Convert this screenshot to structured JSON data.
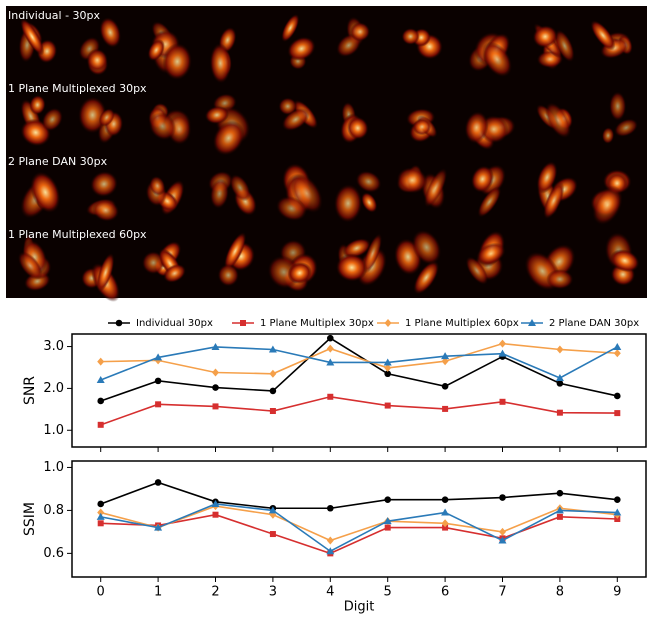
{
  "image_grid": {
    "row_labels": [
      "Individual - 30px",
      "1 Plane Multiplexed 30px",
      "2 Plane DAN 30px",
      "1 Plane Multiplexed 60px"
    ]
  },
  "chart_data": [
    {
      "type": "line",
      "ylabel": "SNR",
      "x": [
        0,
        1,
        2,
        3,
        4,
        5,
        6,
        7,
        8,
        9
      ],
      "xlim": [
        -0.5,
        9.5
      ],
      "xticks": [
        0,
        1,
        2,
        3,
        4,
        5,
        6,
        7,
        8,
        9
      ],
      "ylim": [
        0.6,
        3.3
      ],
      "yticks": [
        {
          "value": 1,
          "label": "1.0"
        },
        {
          "value": 2,
          "label": "2.0"
        },
        {
          "value": 3,
          "label": "3.0"
        }
      ],
      "series": [
        {
          "name": "Individual 30px",
          "color": "#000000",
          "marker": "circle",
          "values": [
            1.7,
            2.18,
            2.02,
            1.94,
            3.2,
            2.35,
            2.05,
            2.76,
            2.12,
            1.82
          ]
        },
        {
          "name": "1 Plane Multiplex 30px",
          "color": "#d62f2f",
          "marker": "square",
          "values": [
            1.13,
            1.62,
            1.57,
            1.46,
            1.8,
            1.59,
            1.51,
            1.68,
            1.42,
            1.41
          ]
        },
        {
          "name": "1 Plane Multiplex 60px",
          "color": "#f5a04a",
          "marker": "diamond",
          "values": [
            2.64,
            2.67,
            2.38,
            2.35,
            2.95,
            2.49,
            2.65,
            3.07,
            2.93,
            2.84
          ]
        },
        {
          "name": "2 Plane DAN 30px",
          "color": "#2a7ab8",
          "marker": "triangle",
          "values": [
            2.2,
            2.74,
            2.99,
            2.93,
            2.62,
            2.62,
            2.77,
            2.83,
            2.25,
            2.99
          ]
        }
      ]
    },
    {
      "type": "line",
      "ylabel": "SSIM",
      "xlabel": "Digit",
      "x": [
        0,
        1,
        2,
        3,
        4,
        5,
        6,
        7,
        8,
        9
      ],
      "xlim": [
        -0.5,
        9.5
      ],
      "xticks": [
        0,
        1,
        2,
        3,
        4,
        5,
        6,
        7,
        8,
        9
      ],
      "ylim": [
        0.49,
        1.03
      ],
      "yticks": [
        {
          "value": 0.6,
          "label": "0.6"
        },
        {
          "value": 0.8,
          "label": "0.8"
        },
        {
          "value": 1,
          "label": "1.0"
        }
      ],
      "series": [
        {
          "color": "#000000",
          "marker": "circle",
          "values": [
            0.83,
            0.93,
            0.84,
            0.81,
            0.81,
            0.85,
            0.85,
            0.86,
            0.88,
            0.85
          ]
        },
        {
          "color": "#d62f2f",
          "marker": "square",
          "values": [
            0.74,
            0.73,
            0.78,
            0.69,
            0.6,
            0.72,
            0.72,
            0.67,
            0.77,
            0.76
          ]
        },
        {
          "color": "#f5a04a",
          "marker": "diamond",
          "values": [
            0.79,
            0.72,
            0.82,
            0.78,
            0.66,
            0.75,
            0.74,
            0.7,
            0.81,
            0.78
          ]
        },
        {
          "color": "#2a7ab8",
          "marker": "triangle",
          "values": [
            0.77,
            0.72,
            0.83,
            0.8,
            0.61,
            0.75,
            0.79,
            0.66,
            0.8,
            0.79
          ]
        }
      ]
    }
  ]
}
